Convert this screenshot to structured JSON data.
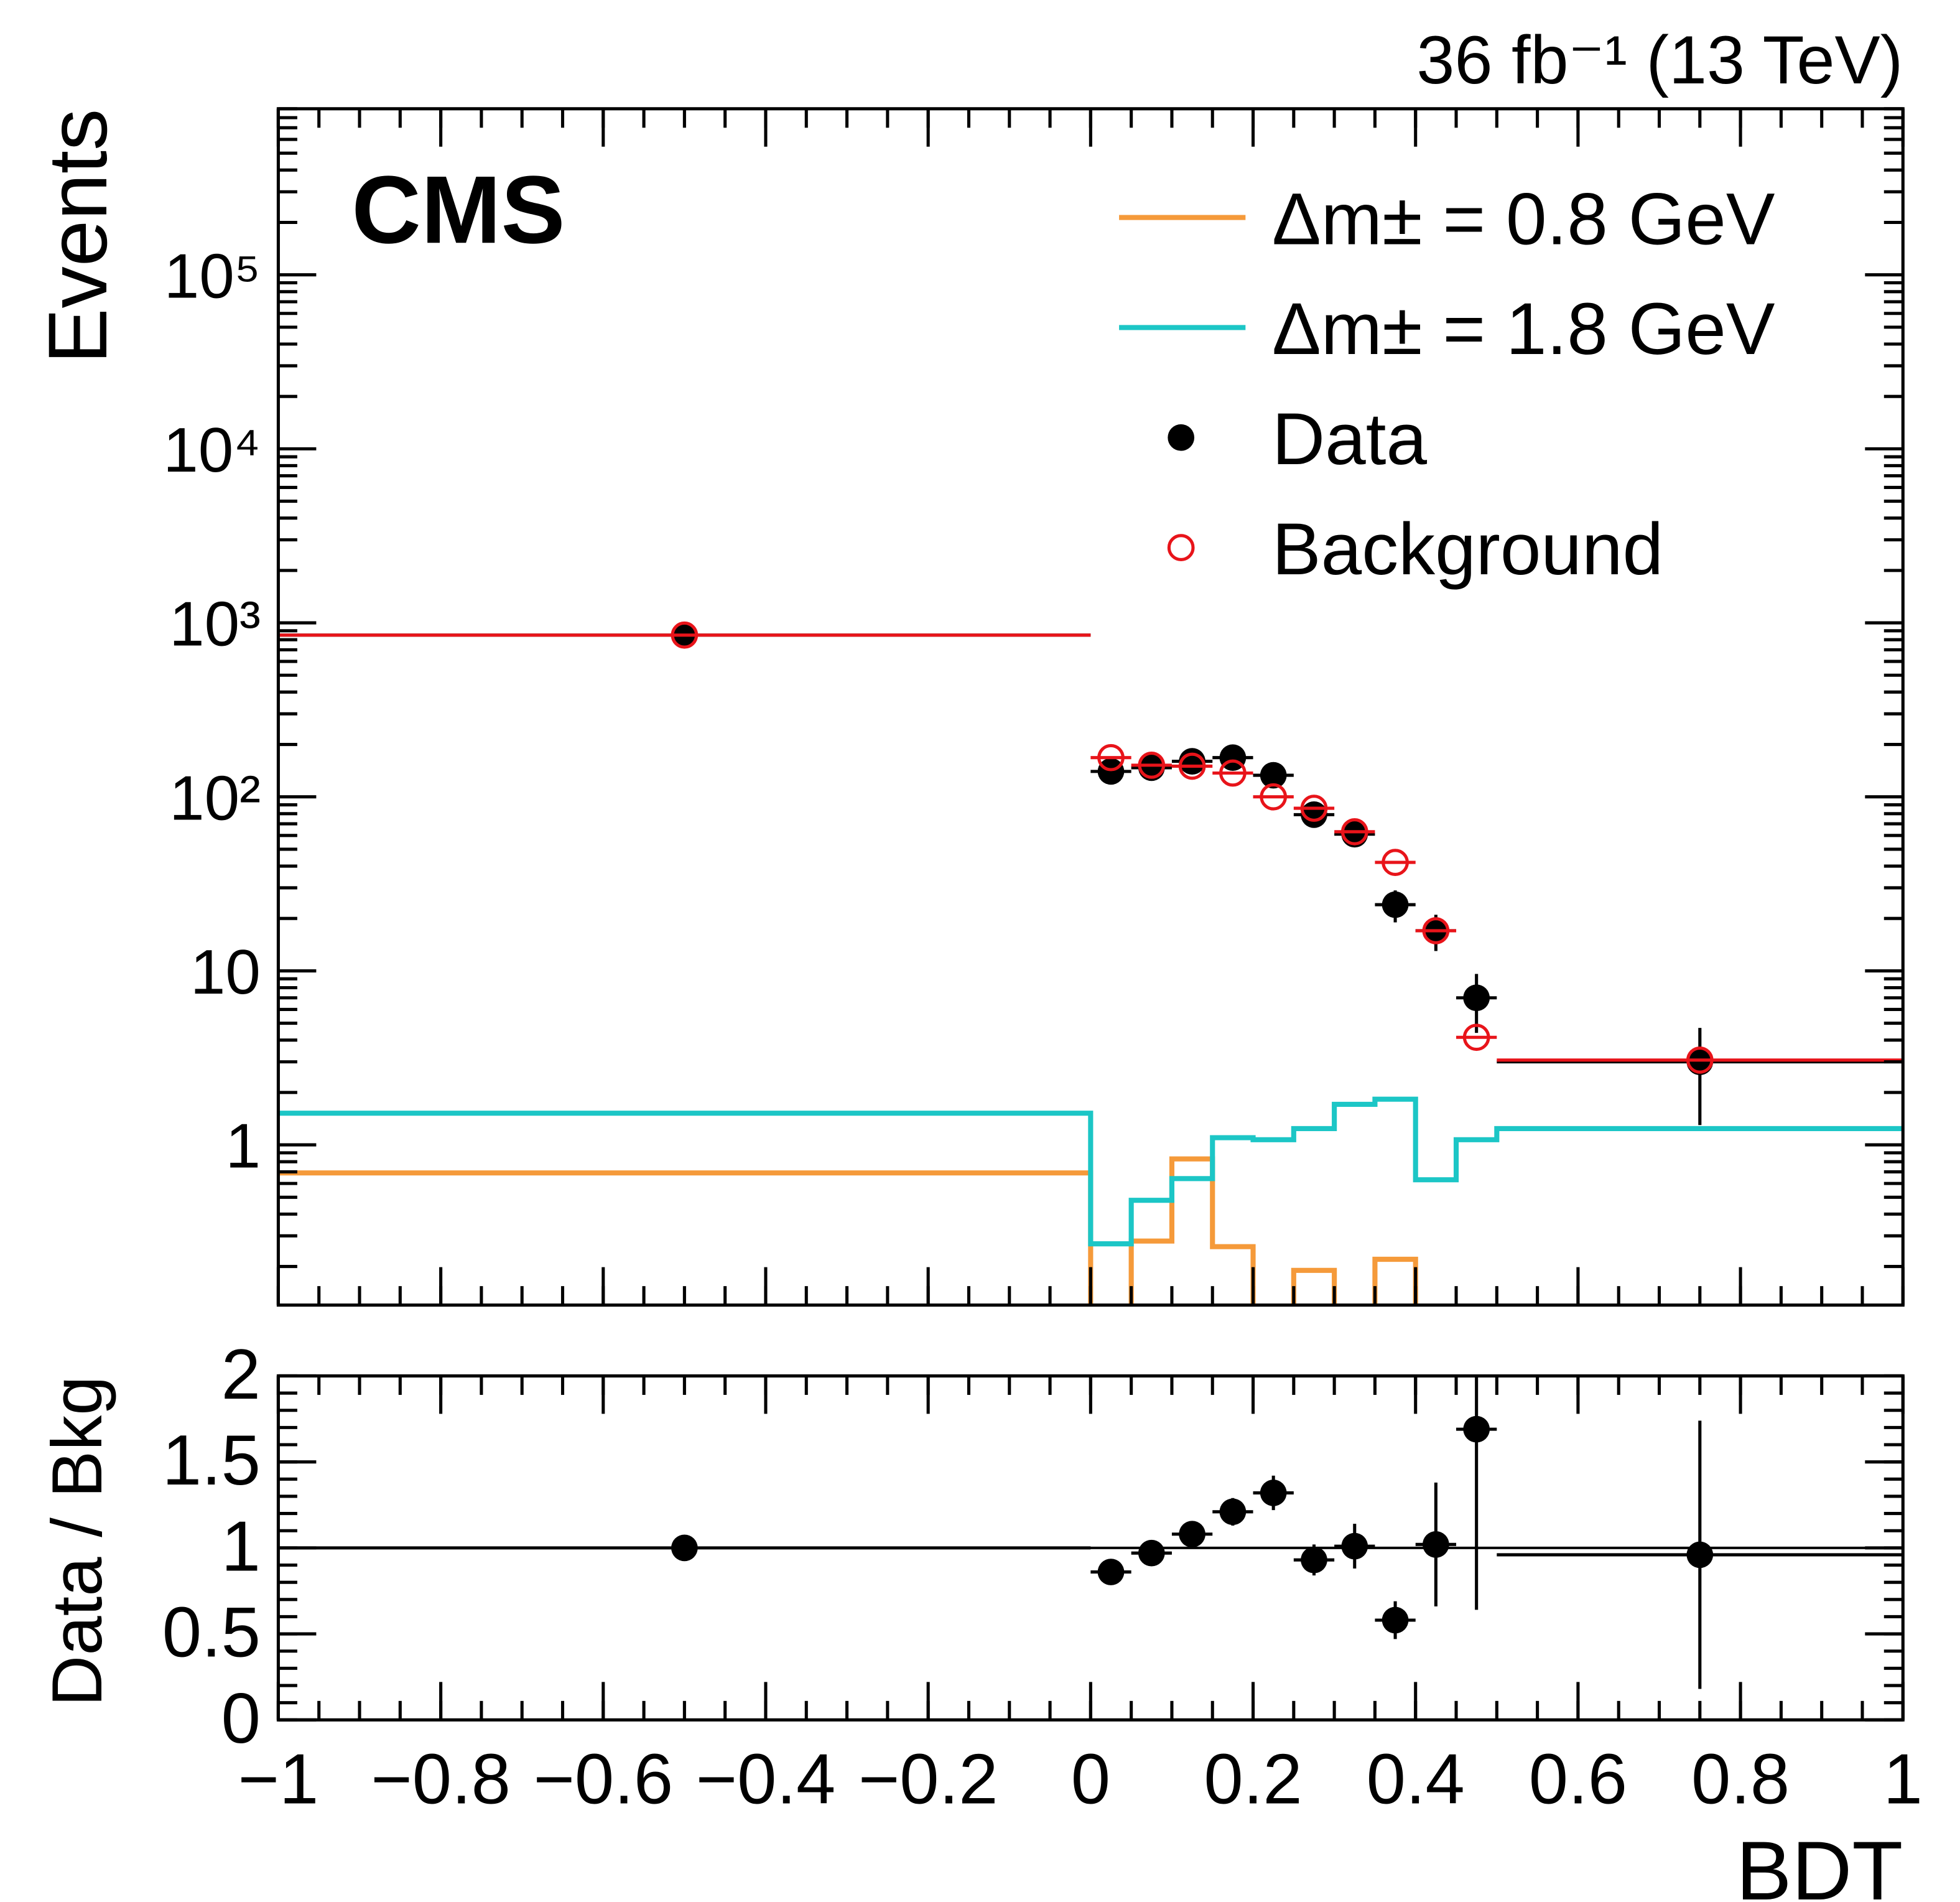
{
  "chart_data": [
    {
      "type": "scatter",
      "title": "36 fb⁻¹ (13 TeV)",
      "label": "CMS",
      "ylabel": "Events",
      "log_y": true,
      "xlim": [
        -1,
        1
      ],
      "ylim": [
        0.12,
        900000
      ],
      "yticks": [
        1,
        10,
        {
          "value": 100,
          "label": "10²"
        },
        {
          "value": 1000,
          "label": "10³"
        },
        {
          "value": 10000,
          "label": "10⁴"
        },
        {
          "value": 100000,
          "label": "10⁵"
        }
      ],
      "bin_edges": [
        -1,
        0,
        0.05,
        0.1,
        0.15,
        0.2,
        0.25,
        0.3,
        0.35,
        0.4,
        0.45,
        0.5,
        1
      ],
      "x": [
        -0.5,
        0.025,
        0.075,
        0.125,
        0.175,
        0.225,
        0.275,
        0.325,
        0.375,
        0.425,
        0.475,
        0.75
      ],
      "series": [
        {
          "name": "Δm± = 0.8 GeV",
          "type": "step",
          "color": "#f59a3a",
          "values": [
            0.69,
            0,
            0.28,
            0.83,
            0.26,
            0,
            0.19,
            0,
            0.22,
            0,
            0,
            0
          ]
        },
        {
          "name": "Δm± = 1.8 GeV",
          "type": "step",
          "color": "#1cc6c6",
          "values": [
            1.52,
            0.27,
            0.48,
            0.64,
            1.1,
            1.07,
            1.24,
            1.71,
            1.83,
            0.63,
            1.07,
            1.24
          ]
        },
        {
          "name": "Data",
          "type": "points",
          "color": "#000000",
          "values": [
            850,
            140,
            147,
            160,
            168,
            133,
            79,
            61,
            24,
            17,
            7,
            3
          ],
          "errors": [
            29,
            12,
            12,
            13,
            13,
            12,
            9,
            8,
            5,
            4,
            2.6,
            1.7
          ]
        },
        {
          "name": "Background",
          "type": "hollow",
          "color": "#e8141a",
          "values": [
            850,
            168,
            152,
            150,
            137,
            100,
            86,
            63,
            42,
            17,
            4.15,
            3.07
          ]
        }
      ]
    },
    {
      "type": "scatter",
      "ylabel": "Data / Bkg",
      "xlabel": "BDT",
      "reference": 1,
      "xlim": [
        -1,
        1
      ],
      "ylim": [
        0,
        2
      ],
      "xticks": [
        {
          "value": -1,
          "label": "−1"
        },
        {
          "value": -0.8,
          "label": "−0.8"
        },
        {
          "value": -0.6,
          "label": "−0.6"
        },
        {
          "value": -0.4,
          "label": "−0.4"
        },
        {
          "value": -0.2,
          "label": "−0.2"
        },
        0,
        0.2,
        0.4,
        0.6,
        0.8,
        1
      ],
      "yticks": [
        0,
        0.5,
        1,
        1.5,
        2
      ],
      "bin_edges": [
        -1,
        0,
        0.05,
        0.1,
        0.15,
        0.2,
        0.25,
        0.3,
        0.35,
        0.4,
        0.45,
        0.5,
        1
      ],
      "x": [
        -0.5,
        0.025,
        0.075,
        0.125,
        0.175,
        0.225,
        0.275,
        0.325,
        0.375,
        0.425,
        0.475,
        0.75
      ],
      "series": [
        {
          "type": "points",
          "color": "#000000",
          "values": [
            1.0,
            0.86,
            0.97,
            1.08,
            1.21,
            1.32,
            0.93,
            1.01,
            0.58,
            1.02,
            1.69,
            0.96
          ],
          "errors": [
            0.03,
            0.06,
            0.06,
            0.06,
            0.08,
            0.1,
            0.09,
            0.13,
            0.11,
            0.36,
            1.05,
            0.78
          ]
        }
      ]
    }
  ]
}
